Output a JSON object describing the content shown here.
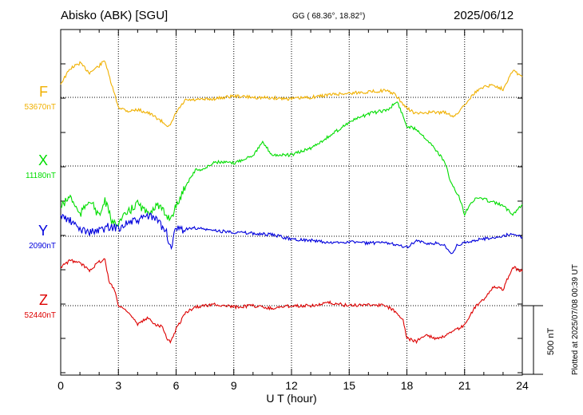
{
  "header": {
    "station": "Abisko (ABK)  [SGU]",
    "coords": "GG ( 68.36°,  18.82°)",
    "date": "2025/06/12"
  },
  "footer": {
    "plotted": "Plotted at 2025/07/08 00:39 UT",
    "scale": "500 nT"
  },
  "colors": {
    "F": "#f0b000",
    "X": "#00dd00",
    "Y": "#0000dd",
    "Z": "#dd0000"
  },
  "chart_data": {
    "type": "line",
    "xlabel": "U T (hour)",
    "xlim": [
      0,
      24
    ],
    "xticks": [
      "0",
      "3",
      "6",
      "9",
      "12",
      "15",
      "18",
      "21",
      "24"
    ],
    "grid": true,
    "scale_bar_nT": 500,
    "series": [
      {
        "name": "F",
        "baseline_label": "53670nT",
        "baseline": 53670,
        "x": [
          0,
          0.5,
          1,
          1.5,
          2,
          2.3,
          2.5,
          3,
          3.5,
          4,
          4.5,
          5,
          5.5,
          5.7,
          6,
          6.5,
          7,
          8,
          9,
          10,
          11,
          12,
          13,
          14,
          15,
          16,
          16.8,
          17.3,
          18,
          18.5,
          19,
          20,
          20.5,
          21,
          21.5,
          22,
          22.5,
          23,
          23.5,
          24
        ],
        "y": [
          53770,
          53880,
          53920,
          53850,
          53900,
          53940,
          53830,
          53600,
          53570,
          53580,
          53560,
          53520,
          53470,
          53460,
          53560,
          53650,
          53650,
          53660,
          53680,
          53670,
          53665,
          53660,
          53670,
          53690,
          53700,
          53710,
          53720,
          53700,
          53590,
          53550,
          53560,
          53560,
          53530,
          53620,
          53700,
          53750,
          53760,
          53730,
          53870,
          53820
        ]
      },
      {
        "name": "X",
        "baseline_label": "11180nT",
        "baseline": 11180,
        "x": [
          0,
          0.5,
          1,
          1.5,
          2,
          2.3,
          2.7,
          3,
          3.5,
          4,
          4.5,
          5,
          5.5,
          5.7,
          6,
          6.5,
          7,
          7.5,
          8,
          9,
          10,
          10.5,
          11,
          12,
          13,
          14,
          15,
          16,
          17,
          17.5,
          18,
          18.5,
          19,
          19.5,
          20,
          20.3,
          20.7,
          21,
          21.3,
          21.7,
          22,
          23,
          23.5,
          24
        ],
        "y": [
          10880,
          10960,
          10820,
          10940,
          10810,
          10930,
          10760,
          10770,
          10840,
          10910,
          10830,
          10900,
          10820,
          10800,
          10880,
          11040,
          11150,
          11160,
          11210,
          11200,
          11260,
          11350,
          11260,
          11260,
          11310,
          11400,
          11500,
          11560,
          11590,
          11650,
          11470,
          11450,
          11380,
          11300,
          11200,
          11050,
          10960,
          10830,
          10910,
          10950,
          10940,
          10890,
          10830,
          10900
        ]
      },
      {
        "name": "Y",
        "baseline_label": "2090nT",
        "baseline": 2090,
        "x": [
          0,
          0.5,
          1,
          1.5,
          2,
          2.5,
          3,
          3.5,
          4,
          4.5,
          5,
          5.5,
          5.7,
          6,
          6.5,
          7,
          8,
          9,
          10,
          11,
          12,
          13,
          14,
          15,
          16,
          17,
          17.5,
          18,
          18.5,
          19,
          19.5,
          20,
          20.3,
          20.6,
          21,
          21.5,
          22,
          22.5,
          23,
          23.5,
          24
        ],
        "y": [
          2240,
          2200,
          2140,
          2120,
          2130,
          2160,
          2150,
          2190,
          2200,
          2240,
          2210,
          2120,
          2000,
          2140,
          2140,
          2150,
          2130,
          2120,
          2110,
          2100,
          2070,
          2060,
          2040,
          2050,
          2040,
          2040,
          2030,
          2010,
          2060,
          2030,
          2040,
          2020,
          1960,
          2020,
          2040,
          2060,
          2070,
          2080,
          2090,
          2110,
          2080
        ]
      },
      {
        "name": "Z",
        "baseline_label": "52440nT",
        "baseline": 52440,
        "x": [
          0,
          0.5,
          1,
          1.5,
          2,
          2.3,
          2.5,
          2.8,
          3,
          3.5,
          4,
          4.5,
          5,
          5.3,
          5.5,
          5.7,
          6,
          6.5,
          7,
          8,
          9,
          10,
          11,
          12,
          13,
          14,
          15,
          16,
          16.8,
          17.3,
          17.8,
          18,
          18.5,
          19,
          19.5,
          20,
          20.5,
          21,
          21.5,
          22,
          22.5,
          23,
          23.5,
          24
        ],
        "y": [
          52720,
          52770,
          52750,
          52700,
          52760,
          52780,
          52620,
          52560,
          52440,
          52400,
          52300,
          52350,
          52300,
          52290,
          52210,
          52170,
          52270,
          52390,
          52430,
          52450,
          52430,
          52440,
          52420,
          52440,
          52440,
          52460,
          52440,
          52450,
          52440,
          52410,
          52340,
          52200,
          52180,
          52230,
          52200,
          52220,
          52260,
          52300,
          52420,
          52490,
          52580,
          52560,
          52720,
          52690
        ]
      }
    ]
  }
}
